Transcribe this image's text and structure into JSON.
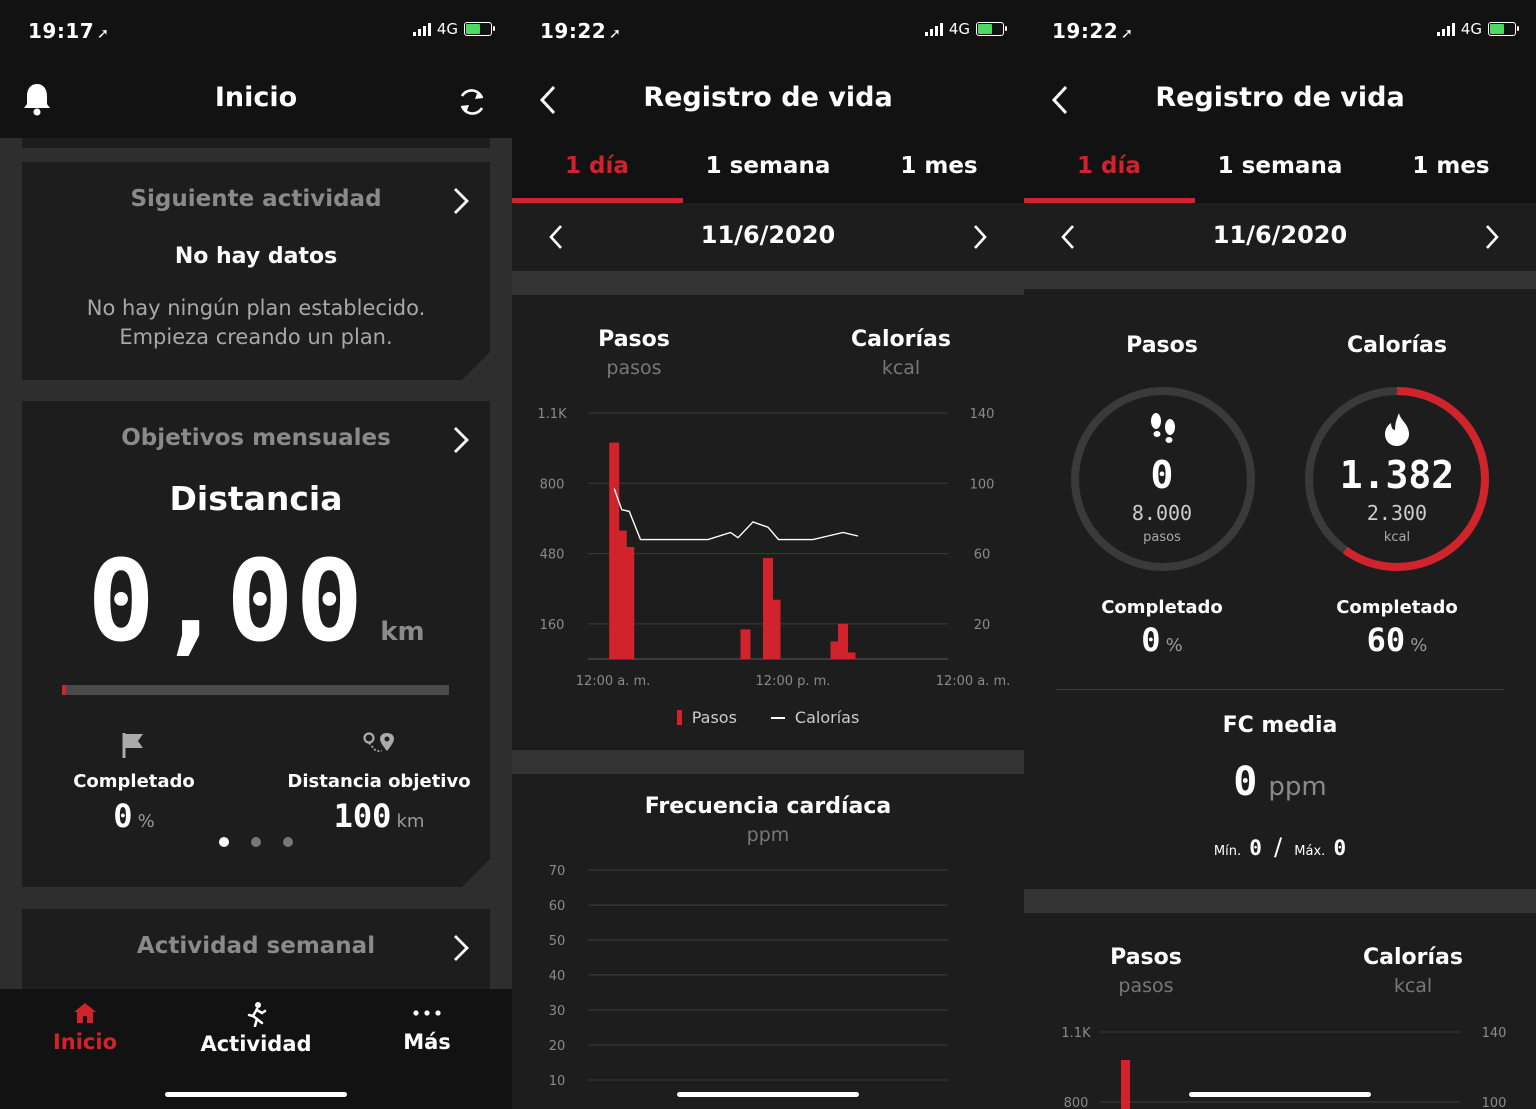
{
  "colors": {
    "accent": "#d0232b",
    "background": "#121212",
    "card": "#1d1d1d",
    "muted": "#8a8a8a"
  },
  "screen1": {
    "status": {
      "time": "19:17",
      "network": "4G"
    },
    "title": "Inicio",
    "next_activity": {
      "title": "Siguiente actividad",
      "no_data": "No hay datos",
      "message_line1": "No hay ningún plan establecido.",
      "message_line2": "Empieza creando un plan."
    },
    "monthly": {
      "title": "Objetivos mensuales",
      "metric": "Distancia",
      "value": "0,00",
      "unit": "km",
      "progress": 0,
      "completed_label": "Completado",
      "completed_value": "0",
      "completed_unit": "%",
      "target_label": "Distancia objetivo",
      "target_value": "100",
      "target_unit": "km",
      "page_indicator": {
        "pages": 3,
        "current": 1
      }
    },
    "weekly": {
      "title": "Actividad semanal"
    },
    "tabbar": [
      {
        "label": "Inicio",
        "icon": "home-icon",
        "active": true
      },
      {
        "label": "Actividad",
        "icon": "run-icon",
        "active": false
      },
      {
        "label": "Más",
        "icon": "more-icon",
        "active": false
      }
    ]
  },
  "screen2": {
    "status": {
      "time": "19:22",
      "network": "4G"
    },
    "title": "Registro de vida",
    "tabs": [
      "1 día",
      "1 semana",
      "1 mes"
    ],
    "date": "11/6/2020",
    "steps_title": "Pasos",
    "steps_unit": "pasos",
    "cal_title": "Calorías",
    "cal_unit": "kcal",
    "legend": {
      "steps": "Pasos",
      "calories": "Calorías"
    },
    "hr": {
      "title": "Frecuencia cardíaca",
      "unit": "ppm"
    }
  },
  "screen3": {
    "status": {
      "time": "19:22",
      "network": "4G"
    },
    "title": "Registro de vida",
    "tabs": [
      "1 día",
      "1 semana",
      "1 mes"
    ],
    "date": "11/6/2020",
    "steps": {
      "title": "Pasos",
      "value": "0",
      "goal": "8.000",
      "unit": "pasos",
      "completed_label": "Completado",
      "completed_value": "0",
      "completed_unit": "%",
      "progress": 0
    },
    "calories": {
      "title": "Calorías",
      "value": "1.382",
      "goal": "2.300",
      "unit": "kcal",
      "completed_label": "Completado",
      "completed_value": "60",
      "completed_unit": "%",
      "progress": 0.6
    },
    "fc": {
      "title": "FC media",
      "value": "0",
      "unit": "ppm",
      "min_label": "Mín.",
      "min_value": "0",
      "max_label": "Máx.",
      "max_value": "0"
    },
    "bottom": {
      "steps_title": "Pasos",
      "steps_unit": "pasos",
      "cal_title": "Calorías",
      "cal_unit": "kcal",
      "left_ticks": [
        "1.1K",
        "800"
      ],
      "right_ticks": [
        "140",
        "100"
      ]
    }
  },
  "chart_data": [
    {
      "type": "bar",
      "title": "Pasos / Calorías",
      "x_ticks": [
        "12:00 a. m.",
        "12:00 p. m.",
        "12:00 a. m."
      ],
      "y_left_ticks": [
        "1.1K",
        "800",
        "480",
        "160"
      ],
      "y_right_ticks": [
        "140",
        "100",
        "60",
        "20"
      ],
      "ylim_left": [
        0,
        1120
      ],
      "ylim_right": [
        0,
        140
      ],
      "series": [
        {
          "name": "Pasos",
          "kind": "bar",
          "x": [
            1.75,
            2.25,
            2.75,
            10.5,
            12.0,
            12.5,
            16.5,
            17.0,
            17.5
          ],
          "values": [
            985,
            585,
            510,
            135,
            460,
            270,
            80,
            160,
            30
          ]
        },
        {
          "name": "Calorías",
          "kind": "line",
          "x": [
            1.75,
            2.25,
            2.75,
            3.5,
            4.5,
            6.0,
            8.0,
            9.5,
            10.0,
            11.0,
            12.0,
            12.7,
            13.3,
            15.0,
            16.0,
            17.0,
            18.0
          ],
          "values": [
            97,
            85,
            84,
            68,
            68,
            68,
            68,
            72,
            69,
            78,
            75,
            68,
            68,
            68,
            70,
            72,
            70
          ]
        }
      ]
    },
    {
      "type": "line",
      "title": "Frecuencia cardíaca",
      "ylabel": "ppm",
      "y_ticks": [
        "70",
        "60",
        "50",
        "40",
        "30",
        "20",
        "10"
      ],
      "ylim": [
        0,
        70
      ],
      "series": []
    }
  ]
}
